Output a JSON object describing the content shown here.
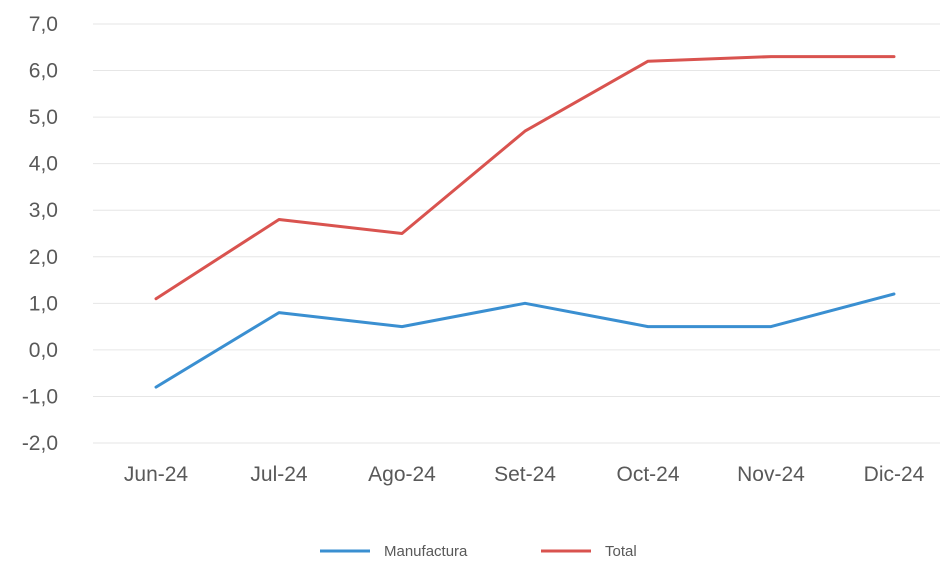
{
  "chart_data": {
    "type": "line",
    "title": "",
    "xlabel": "",
    "ylabel": "",
    "categories": [
      "Jun-24",
      "Jul-24",
      "Ago-24",
      "Set-24",
      "Oct-24",
      "Nov-24",
      "Dic-24"
    ],
    "y_tick_labels": [
      "7,0",
      "6,0",
      "5,0",
      "4,0",
      "3,0",
      "2,0",
      "1,0",
      "0,0",
      "-1,0",
      "-2,0"
    ],
    "y_ticks": [
      7,
      6,
      5,
      4,
      3,
      2,
      1,
      0,
      -1,
      -2
    ],
    "ylim": [
      -2,
      7
    ],
    "grid": true,
    "legend_position": "bottom",
    "series": [
      {
        "name": "Manufactura",
        "color": "#3a8fd1",
        "values": [
          -0.8,
          0.8,
          0.5,
          1.0,
          0.5,
          0.5,
          1.2
        ]
      },
      {
        "name": "Total",
        "color": "#d9534f",
        "values": [
          1.1,
          2.8,
          2.5,
          4.7,
          6.2,
          6.3,
          6.3
        ]
      }
    ]
  }
}
